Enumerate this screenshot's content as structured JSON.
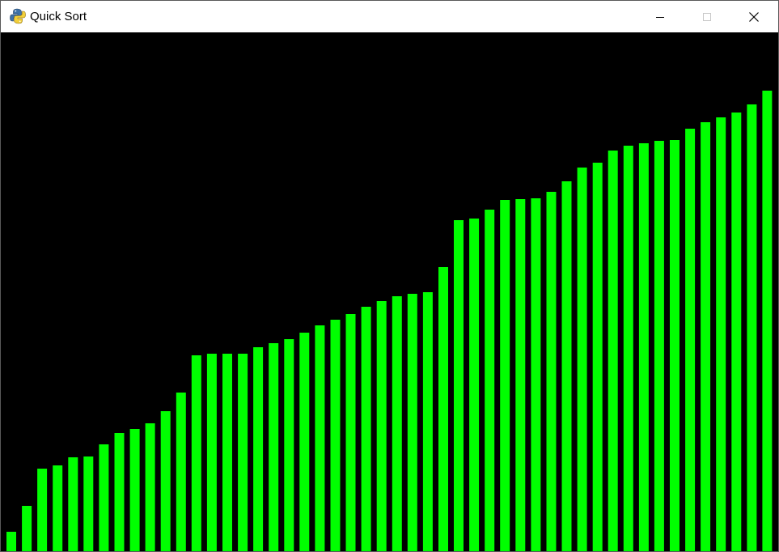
{
  "window": {
    "title": "Quick Sort",
    "icon": "python-snake-icon",
    "controls": [
      "minimize-icon",
      "maximize-icon",
      "close-icon"
    ]
  },
  "colors": {
    "bar": "#00ff00",
    "background": "#000000",
    "titlebar": "#ffffff"
  },
  "chart_data": {
    "type": "bar",
    "values": [
      24,
      56,
      102,
      106,
      116,
      117,
      132,
      146,
      151,
      158,
      173,
      196,
      242,
      244,
      244,
      244,
      252,
      257,
      262,
      270,
      279,
      286,
      293,
      302,
      309,
      315,
      318,
      320,
      351,
      409,
      411,
      422,
      434,
      435,
      436,
      444,
      457,
      474,
      480,
      495,
      501,
      504,
      507,
      508,
      522,
      530,
      536,
      542,
      552,
      569
    ]
  }
}
